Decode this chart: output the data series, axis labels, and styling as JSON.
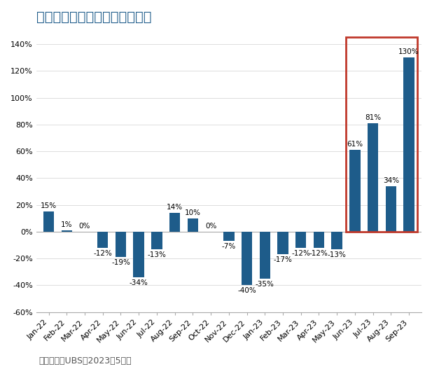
{
  "title": "圖四：半導體生產設備貿易差額",
  "categories": [
    "Jan-22",
    "Feb-22",
    "Mar-22",
    "Apr-22",
    "May-22",
    "Jun-22",
    "Jul-22",
    "Aug-22",
    "Sep-22",
    "Oct-22",
    "Nov-22",
    "Dec-22",
    "Jan-23",
    "Feb-23",
    "Mar-23",
    "Apr-23",
    "May-23",
    "Jun-23",
    "Jul-23",
    "Aug-23",
    "Sep-23"
  ],
  "values": [
    15,
    1,
    0,
    -12,
    -19,
    -34,
    -13,
    14,
    10,
    0,
    -7,
    -40,
    -35,
    -17,
    -12,
    -12,
    -13,
    61,
    81,
    34,
    130
  ],
  "bar_color": "#1e5c8a",
  "highlight_indices": [
    17,
    18,
    19,
    20
  ],
  "highlight_box_color": "#c0392b",
  "ylim": [
    -60,
    150
  ],
  "yticks": [
    -60,
    -40,
    -20,
    0,
    20,
    40,
    60,
    80,
    100,
    120,
    140
  ],
  "background_color": "#ffffff",
  "footnote": "資料來源：UBS，2023年5月。",
  "title_fontsize": 14,
  "label_fontsize": 7.5,
  "tick_fontsize": 8,
  "footnote_fontsize": 9,
  "title_color": "#1e5c8a"
}
